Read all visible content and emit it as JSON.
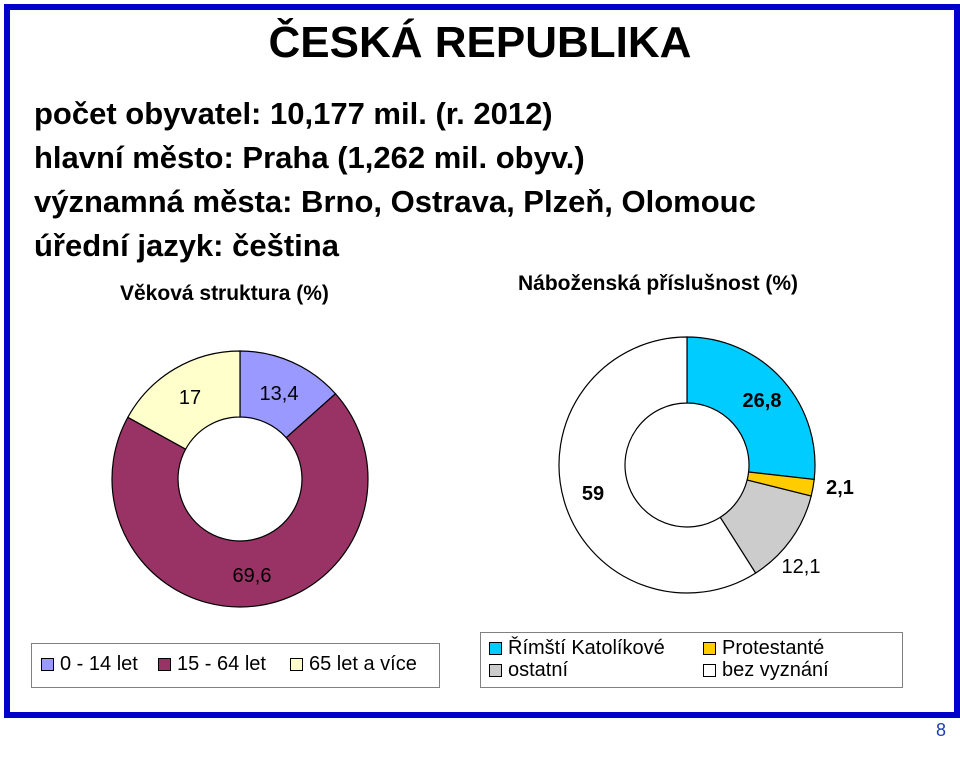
{
  "slide": {
    "title": "ČESKÁ REPUBLIKA",
    "info_lines": [
      "počet obyvatel: 10,177 mil. (r. 2012)",
      "hlavní město: Praha (1,262 mil. obyv.)",
      "významná města: Brno, Ostrava, Plzeň, Olomouc",
      "úřední jazyk: čeština"
    ],
    "page_number": "8"
  },
  "chart_data": [
    {
      "type": "pie",
      "donut": true,
      "title": "Věková struktura (%)",
      "categories": [
        "0 - 14 let",
        "15 - 64 let",
        "65 let a více"
      ],
      "values": [
        13.4,
        69.6,
        17
      ],
      "labels": [
        "13,4",
        "69,6",
        "17"
      ],
      "colors": [
        "#9999ff",
        "#993366",
        "#ffffcc"
      ],
      "legend_position": "bottom"
    },
    {
      "type": "pie",
      "donut": true,
      "title": "Náboženská příslušnost (%)",
      "categories": [
        "Římští Katolíkové",
        "Protestanté",
        "ostatní",
        "bez vyznání"
      ],
      "values": [
        26.8,
        2.1,
        12.1,
        59
      ],
      "labels": [
        "26,8",
        "2,1",
        "12,1",
        "59"
      ],
      "colors": [
        "#00ccff",
        "#ffcc00",
        "#cccccc",
        "#ffffff"
      ],
      "legend_position": "bottom"
    }
  ]
}
